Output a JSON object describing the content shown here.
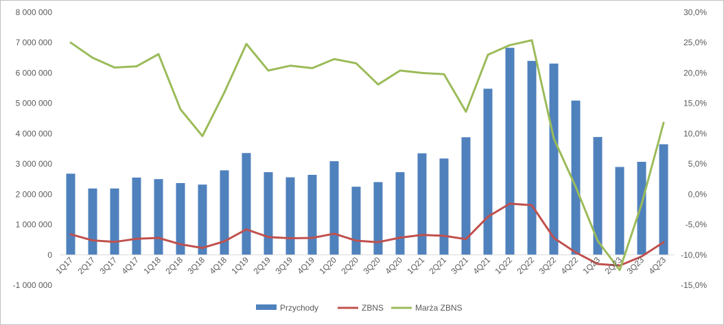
{
  "chart_data": {
    "type": "bar",
    "categories": [
      "1Q17",
      "2Q17",
      "3Q17",
      "4Q17",
      "1Q18",
      "2Q18",
      "3Q18",
      "4Q18",
      "1Q19",
      "2Q19",
      "3Q19",
      "4Q19",
      "1Q20",
      "2Q20",
      "3Q20",
      "4Q20",
      "1Q21",
      "2Q21",
      "3Q21",
      "4Q21",
      "1Q22",
      "2Q22",
      "3Q22",
      "4Q22",
      "1Q23",
      "2Q23",
      "3Q23",
      "4Q23"
    ],
    "series": [
      {
        "name": "Przychody",
        "kind": "bar",
        "axis": "left",
        "color": "#4f81bd",
        "values": [
          2680000,
          2190000,
          2190000,
          2550000,
          2500000,
          2370000,
          2320000,
          2790000,
          3360000,
          2730000,
          2560000,
          2640000,
          3090000,
          2250000,
          2400000,
          2730000,
          3350000,
          3180000,
          3880000,
          5480000,
          6830000,
          6400000,
          6310000,
          5090000,
          3890000,
          2900000,
          3070000,
          3650000
        ]
      },
      {
        "name": "ZBNS",
        "kind": "line",
        "axis": "left",
        "color": "#c0504d",
        "values": [
          680000,
          480000,
          430000,
          530000,
          560000,
          350000,
          230000,
          450000,
          840000,
          590000,
          550000,
          560000,
          700000,
          470000,
          420000,
          570000,
          660000,
          630000,
          520000,
          1260000,
          1690000,
          1640000,
          560000,
          80000,
          -300000,
          -350000,
          -50000,
          420000
        ]
      },
      {
        "name": "Marża ZBNS",
        "kind": "line",
        "axis": "right",
        "color": "#9bbb59",
        "values": [
          25.0,
          22.5,
          20.9,
          21.1,
          23.1,
          14.0,
          9.6,
          16.8,
          24.8,
          20.4,
          21.2,
          20.8,
          22.3,
          21.6,
          18.1,
          20.4,
          20.0,
          19.8,
          13.6,
          23.0,
          24.6,
          25.4,
          9.2,
          1.2,
          -7.7,
          -12.5,
          -1.6,
          11.8
        ]
      }
    ],
    "yaxis_left": {
      "min": -1000000,
      "max": 8000000,
      "step": 1000000,
      "tick_labels": [
        "-1 000 000",
        "0",
        "1 000 000",
        "2 000 000",
        "3 000 000",
        "4 000 000",
        "5 000 000",
        "6 000 000",
        "7 000 000",
        "8 000 000"
      ]
    },
    "yaxis_right": {
      "min": -15,
      "max": 30,
      "step": 5,
      "tick_labels": [
        "-15,0%",
        "-10,0%",
        "-5,0%",
        "0,0%",
        "5,0%",
        "10,0%",
        "15,0%",
        "20,0%",
        "25,0%",
        "30,0%"
      ]
    },
    "grid": false,
    "legend": {
      "position": "bottom",
      "items": [
        "Przychody",
        "ZBNS",
        "Marża ZBNS"
      ]
    },
    "title": "",
    "xlabel": "",
    "ylabel": ""
  }
}
